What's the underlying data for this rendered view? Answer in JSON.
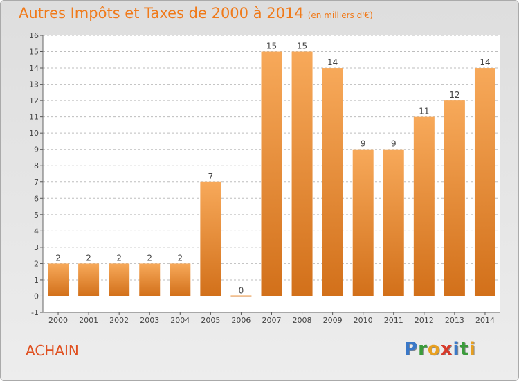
{
  "title": "Autres Impôts et Taxes de 2000 à 2014",
  "subtitle": "(en milliers d'€)",
  "place": "ACHAIN",
  "logo": {
    "letters": [
      {
        "ch": "P",
        "color": "#3a78c8"
      },
      {
        "ch": "r",
        "color": "#3a9c3a"
      },
      {
        "ch": "o",
        "color": "#e8a020"
      },
      {
        "ch": "x",
        "color": "#d83a2a"
      },
      {
        "ch": "i",
        "color": "#3a78c8"
      },
      {
        "ch": "t",
        "color": "#3a9c3a"
      },
      {
        "ch": "i",
        "color": "#e8a020"
      }
    ]
  },
  "chart_data": {
    "type": "bar",
    "categories": [
      "2000",
      "2001",
      "2002",
      "2003",
      "2004",
      "2005",
      "2006",
      "2007",
      "2008",
      "2009",
      "2010",
      "2011",
      "2012",
      "2013",
      "2014"
    ],
    "values": [
      2,
      2,
      2,
      2,
      2,
      7,
      0,
      15,
      15,
      14,
      9,
      9,
      11,
      12,
      14
    ],
    "ylim": [
      -1,
      16
    ],
    "yticks": [
      -1,
      0,
      1,
      2,
      3,
      4,
      5,
      6,
      7,
      8,
      9,
      10,
      11,
      12,
      13,
      14,
      15,
      16
    ],
    "grid": true,
    "bar_color": "#f08a30",
    "bar_color_light": "#f7a95a",
    "bar_color_dark": "#d2701a"
  }
}
